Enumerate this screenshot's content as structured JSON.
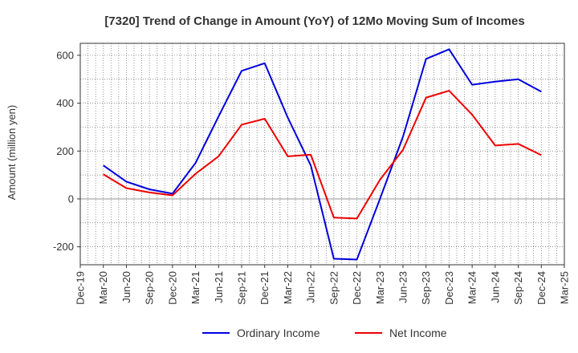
{
  "chart_data": {
    "type": "line",
    "title": "[7320]  Trend of Change in Amount (YoY) of 12Mo Moving Sum of Incomes",
    "xlabel": "",
    "ylabel": "Amount (million yen)",
    "categories": [
      "Dec-19",
      "Mar-20",
      "Jun-20",
      "Sep-20",
      "Dec-20",
      "Mar-21",
      "Jun-21",
      "Sep-21",
      "Dec-21",
      "Mar-22",
      "Jun-22",
      "Sep-22",
      "Dec-22",
      "Mar-23",
      "Jun-23",
      "Sep-23",
      "Dec-23",
      "Mar-24",
      "Jun-24",
      "Sep-24",
      "Dec-24",
      "Mar-25"
    ],
    "ylim": [
      -275,
      650
    ],
    "yticks": [
      -200,
      0,
      200,
      400,
      600
    ],
    "grid": true,
    "legend_position": "bottom",
    "series": [
      {
        "name": "Ordinary Income",
        "color": "#0000dd",
        "values": [
          null,
          140,
          72,
          40,
          22,
          150,
          345,
          535,
          567,
          340,
          140,
          -250,
          -253,
          0,
          260,
          585,
          625,
          477,
          490,
          500,
          448,
          null
        ]
      },
      {
        "name": "Net Income",
        "color": "#ee0000",
        "values": [
          null,
          103,
          45,
          27,
          15,
          105,
          178,
          310,
          335,
          178,
          185,
          -78,
          -82,
          80,
          205,
          423,
          452,
          352,
          223,
          230,
          183,
          null
        ]
      }
    ]
  }
}
